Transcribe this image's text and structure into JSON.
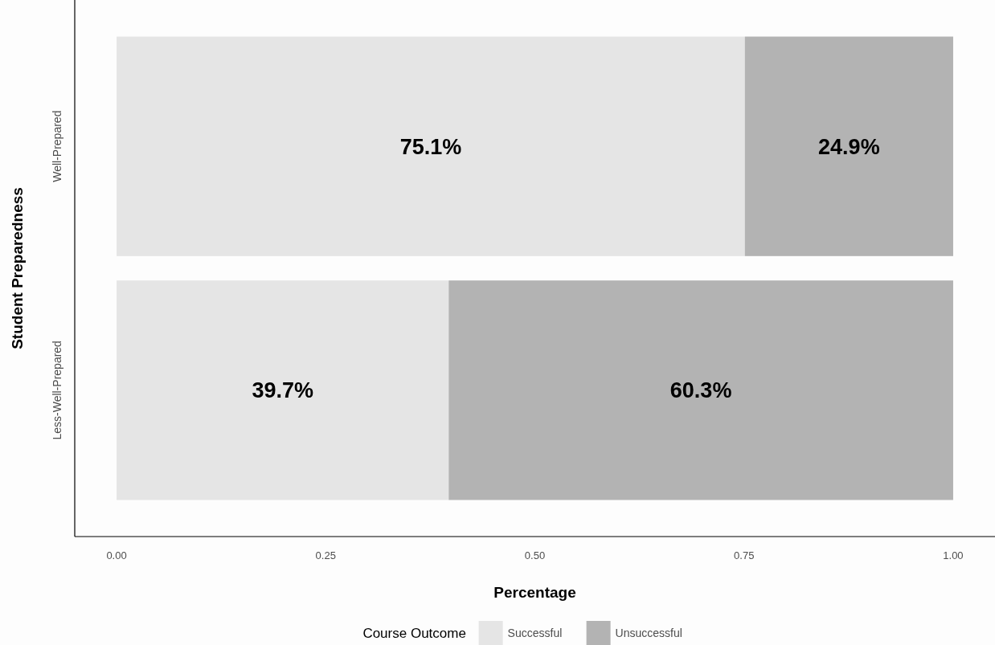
{
  "chart_data": {
    "type": "bar",
    "orientation": "horizontal",
    "stacked": true,
    "categories": [
      "Well-Prepared",
      "Less-Well-Prepared"
    ],
    "series": [
      {
        "name": "Successful",
        "color": "#e5e5e5",
        "values": [
          0.751,
          0.397
        ],
        "value_labels": [
          "75.1%",
          "39.7%"
        ]
      },
      {
        "name": "Unsuccessful",
        "color": "#b3b3b3",
        "values": [
          0.249,
          0.603
        ],
        "value_labels": [
          "24.9%",
          "60.3%"
        ]
      }
    ],
    "xlim": [
      -0.05,
      1.05
    ],
    "xticks": [
      {
        "value": 0,
        "label": "0.00"
      },
      {
        "value": 0.25,
        "label": "0.25"
      },
      {
        "value": 0.5,
        "label": "0.50"
      },
      {
        "value": 0.75,
        "label": "0.75"
      },
      {
        "value": 1,
        "label": "1.00"
      }
    ],
    "xlabel": "Percentage",
    "ylabel": "Student Preparedness",
    "legend_title": "Course Outcome",
    "legend": "bottom",
    "grid": false
  }
}
